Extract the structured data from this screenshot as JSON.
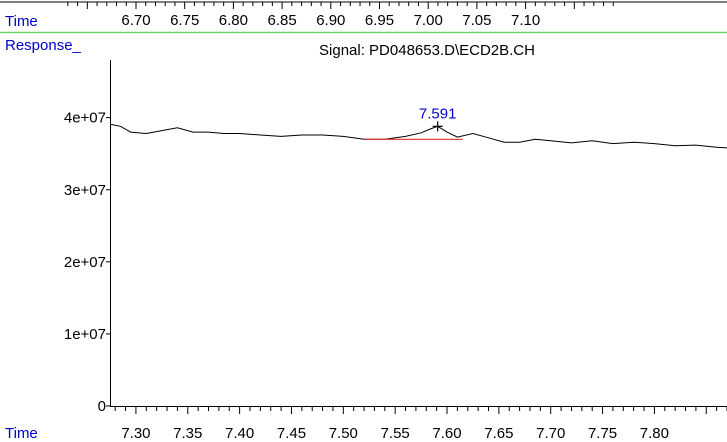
{
  "colors": {
    "label_blue": "#0000cc",
    "separator_green": "#6fd36f",
    "trace": "#000000",
    "baseline": "#e03030",
    "axis": "#000000"
  },
  "top_strip": {
    "label": "Time",
    "ticks": [
      "6.70",
      "6.75",
      "6.80",
      "6.85",
      "6.90",
      "6.95",
      "7.00",
      "7.05",
      "7.10"
    ],
    "tick_values": [
      6.7,
      6.75,
      6.8,
      6.85,
      6.9,
      6.95,
      7.0,
      7.05,
      7.1
    ]
  },
  "chart_data": {
    "type": "line",
    "title": "Signal: PD048653.D\\ECD2B.CH",
    "ylabel": "Response_",
    "xlabel": "Time",
    "xlim": [
      7.275,
      7.87
    ],
    "ylim": [
      0,
      48000000.0
    ],
    "x_tick_labels": [
      "7.30",
      "7.35",
      "7.40",
      "7.45",
      "7.50",
      "7.55",
      "7.60",
      "7.65",
      "7.70",
      "7.75",
      "7.80"
    ],
    "x_ticks": [
      7.3,
      7.35,
      7.4,
      7.45,
      7.5,
      7.55,
      7.6,
      7.65,
      7.7,
      7.75,
      7.8
    ],
    "y_tick_labels": [
      "0",
      "1e+07",
      "2e+07",
      "3e+07",
      "4e+07"
    ],
    "y_ticks": [
      0,
      10000000.0,
      20000000.0,
      30000000.0,
      40000000.0
    ],
    "grid": false,
    "series": [
      {
        "x": [
          7.275,
          7.285,
          7.295,
          7.31,
          7.325,
          7.34,
          7.355,
          7.37,
          7.385,
          7.4,
          7.42,
          7.44,
          7.46,
          7.48,
          7.5,
          7.52,
          7.54,
          7.56,
          7.575,
          7.585,
          7.591,
          7.6,
          7.61,
          7.625,
          7.64,
          7.655,
          7.67,
          7.685,
          7.7,
          7.72,
          7.74,
          7.76,
          7.78,
          7.8,
          7.82,
          7.84,
          7.86,
          7.87
        ],
        "y": [
          39100000.0,
          38800000.0,
          38000000.0,
          37800000.0,
          38200000.0,
          38600000.0,
          38000000.0,
          38000000.0,
          37800000.0,
          37800000.0,
          37600000.0,
          37400000.0,
          37600000.0,
          37600000.0,
          37400000.0,
          37000000.0,
          37000000.0,
          37400000.0,
          37900000.0,
          38500000.0,
          38800000.0,
          38000000.0,
          37300000.0,
          37800000.0,
          37200000.0,
          36600000.0,
          36600000.0,
          37000000.0,
          36800000.0,
          36500000.0,
          36800000.0,
          36400000.0,
          36600000.0,
          36400000.0,
          36100000.0,
          36200000.0,
          35900000.0,
          35800000.0
        ]
      }
    ],
    "baseline": {
      "x": [
        7.52,
        7.615
      ],
      "y": [
        37000000.0,
        37000000.0
      ]
    },
    "peak": {
      "label": "7.591",
      "x": 7.591,
      "y": 38800000.0
    }
  }
}
